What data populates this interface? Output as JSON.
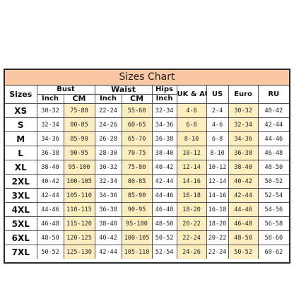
{
  "title": "Sizes Chart",
  "headers": {
    "sizes": "Sizes",
    "bust": "Bust",
    "waist": "Waist",
    "hips": "Hips",
    "uk_au": "UK & AU",
    "us": "US",
    "euro": "Euro",
    "ru": "RU",
    "inch": "Inch",
    "cm": "CM"
  },
  "colors": {
    "title_band": "#f9c8a3",
    "highlight": "#fdeec0",
    "border": "#555555"
  },
  "rows": [
    {
      "size": "XS",
      "bust_in": "30-32",
      "bust_cm": "75-80",
      "waist_in": "22-24",
      "waist_cm": "55-60",
      "hips_in": "32-34",
      "uk_au": "4-6",
      "us": "2-4",
      "euro": "30-32",
      "ru": "40-42"
    },
    {
      "size": "S",
      "bust_in": "32-34",
      "bust_cm": "80-85",
      "waist_in": "24-26",
      "waist_cm": "60-65",
      "hips_in": "34-36",
      "uk_au": "6-8",
      "us": "4-6",
      "euro": "32-34",
      "ru": "42-44"
    },
    {
      "size": "M",
      "bust_in": "34-36",
      "bust_cm": "85-90",
      "waist_in": "26-28",
      "waist_cm": "65-70",
      "hips_in": "36-38",
      "uk_au": "8-10",
      "us": "6-8",
      "euro": "34-36",
      "ru": "44-46"
    },
    {
      "size": "L",
      "bust_in": "36-38",
      "bust_cm": "90-95",
      "waist_in": "28-30",
      "waist_cm": "70-75",
      "hips_in": "38-40",
      "uk_au": "10-12",
      "us": "8-10",
      "euro": "36-38",
      "ru": "46-48"
    },
    {
      "size": "XL",
      "bust_in": "38-40",
      "bust_cm": "95-100",
      "waist_in": "30-32",
      "waist_cm": "75-80",
      "hips_in": "40-42",
      "uk_au": "12-14",
      "us": "10-12",
      "euro": "38-40",
      "ru": "48-50"
    },
    {
      "size": "2XL",
      "bust_in": "40-42",
      "bust_cm": "100-105",
      "waist_in": "32-34",
      "waist_cm": "80-85",
      "hips_in": "42-44",
      "uk_au": "14-16",
      "us": "12-14",
      "euro": "40-42",
      "ru": "50-52"
    },
    {
      "size": "3XL",
      "bust_in": "42-44",
      "bust_cm": "105-110",
      "waist_in": "34-36",
      "waist_cm": "85-90",
      "hips_in": "44-46",
      "uk_au": "16-18",
      "us": "14-16",
      "euro": "42-44",
      "ru": "52-54"
    },
    {
      "size": "4XL",
      "bust_in": "44-46",
      "bust_cm": "110-115",
      "waist_in": "36-38",
      "waist_cm": "90-95",
      "hips_in": "46-48",
      "uk_au": "18-20",
      "us": "16-18",
      "euro": "44-46",
      "ru": "54-56"
    },
    {
      "size": "5XL",
      "bust_in": "46-48",
      "bust_cm": "115-120",
      "waist_in": "38-40",
      "waist_cm": "95-100",
      "hips_in": "48-50",
      "uk_au": "20-22",
      "us": "18-20",
      "euro": "46-48",
      "ru": "56-58"
    },
    {
      "size": "6XL",
      "bust_in": "48-50",
      "bust_cm": "120-125",
      "waist_in": "40-42",
      "waist_cm": "100-105",
      "hips_in": "50-52",
      "uk_au": "22-24",
      "us": "20-22",
      "euro": "48-50",
      "ru": "58-60"
    },
    {
      "size": "7XL",
      "bust_in": "50-52",
      "bust_cm": "125-130",
      "waist_in": "42-44",
      "waist_cm": "105-110",
      "hips_in": "52-54",
      "uk_au": "24-26",
      "us": "22-24",
      "euro": "50-52",
      "ru": "60-62"
    }
  ]
}
